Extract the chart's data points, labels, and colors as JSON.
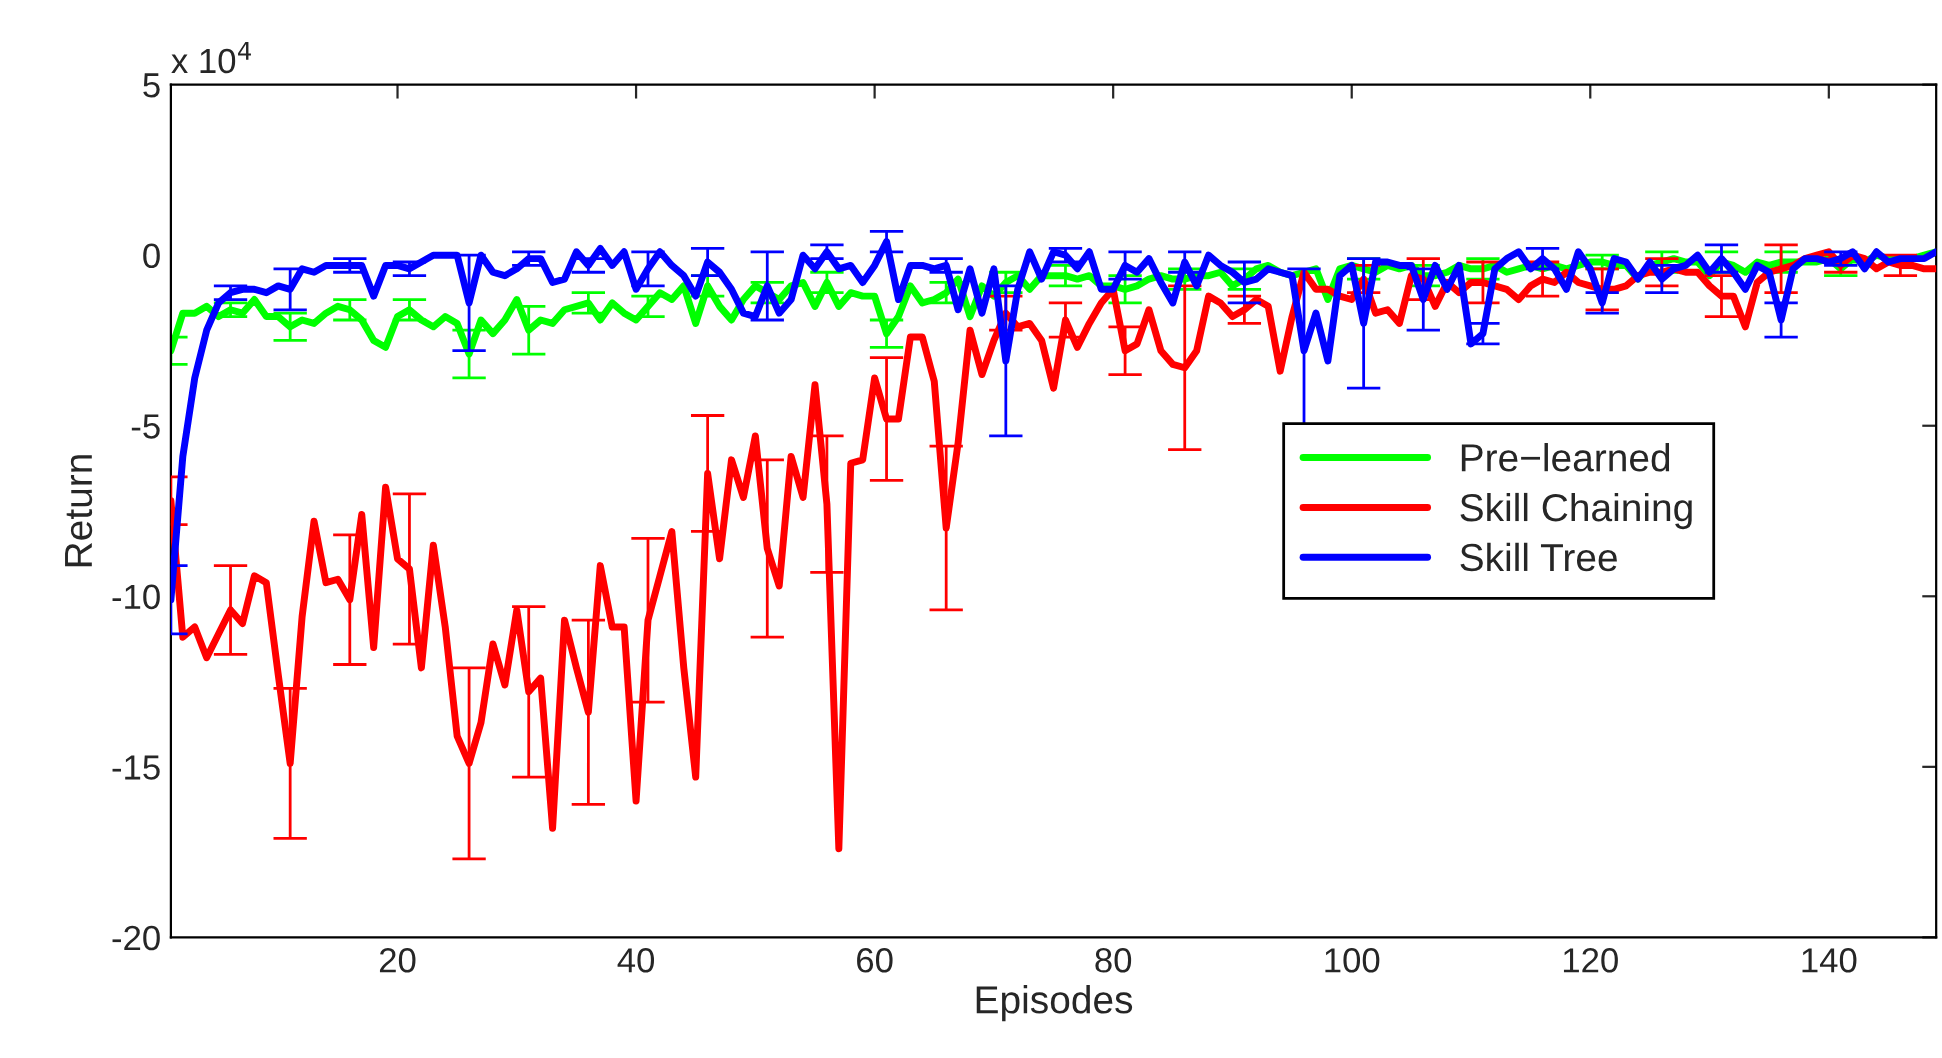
{
  "chart_data": {
    "type": "line",
    "xlabel": "Episodes",
    "ylabel": "Return",
    "annotations": [
      "x 10$^{4}$"
    ],
    "xlim": [
      1,
      149
    ],
    "xticks": [
      20,
      40,
      60,
      80,
      100,
      120,
      140
    ],
    "ylim": [
      -20,
      5
    ],
    "yticks": [
      -20,
      -15,
      -10,
      -5,
      0,
      5
    ],
    "legend": "center right",
    "x": [
      1,
      2,
      3,
      4,
      5,
      6,
      7,
      8,
      9,
      10,
      11,
      12,
      13,
      14,
      15,
      16,
      17,
      18,
      19,
      20,
      21,
      22,
      23,
      24,
      25,
      26,
      27,
      28,
      29,
      30,
      31,
      32,
      33,
      34,
      35,
      36,
      37,
      38,
      39,
      40,
      41,
      42,
      43,
      44,
      45,
      46,
      47,
      48,
      49,
      50,
      51,
      52,
      53,
      54,
      55,
      56,
      57,
      58,
      59,
      60,
      61,
      62,
      63,
      64,
      65,
      66,
      67,
      68,
      69,
      70,
      71,
      72,
      73,
      74,
      75,
      76,
      77,
      78,
      79,
      80,
      81,
      82,
      83,
      84,
      85,
      86,
      87,
      88,
      89,
      90,
      91,
      92,
      93,
      94,
      95,
      96,
      97,
      98,
      99,
      100,
      101,
      102,
      103,
      104,
      105,
      106,
      107,
      108,
      109,
      110,
      111,
      112,
      113,
      114,
      115,
      116,
      117,
      118,
      119,
      120,
      121,
      122,
      123,
      124,
      125,
      126,
      127,
      128,
      129,
      130,
      131,
      132,
      133,
      134,
      135,
      136,
      137,
      138,
      139,
      140,
      141,
      142,
      143,
      144,
      145,
      146,
      147,
      148,
      149
    ],
    "series": [
      {
        "name": "Pre−learned",
        "color": "#00ff00",
        "values": [
          -2.8,
          -1.7,
          -1.7,
          -1.5,
          -1.8,
          -1.6,
          -1.7,
          -1.3,
          -1.8,
          -1.8,
          -2.1,
          -1.9,
          -2.0,
          -1.7,
          -1.5,
          -1.6,
          -1.9,
          -2.5,
          -2.7,
          -1.8,
          -1.6,
          -1.9,
          -2.1,
          -1.8,
          -2.0,
          -2.9,
          -1.9,
          -2.3,
          -1.9,
          -1.3,
          -2.2,
          -1.9,
          -2.0,
          -1.6,
          -1.5,
          -1.4,
          -1.9,
          -1.4,
          -1.7,
          -1.9,
          -1.5,
          -1.1,
          -1.3,
          -0.9,
          -2.0,
          -0.9,
          -1.5,
          -1.9,
          -1.3,
          -0.9,
          -1.1,
          -1.3,
          -0.9,
          -0.8,
          -1.5,
          -0.8,
          -1.5,
          -1.1,
          -1.2,
          -1.2,
          -2.3,
          -1.8,
          -0.9,
          -1.4,
          -1.3,
          -1.1,
          -0.7,
          -1.8,
          -0.9,
          -1.2,
          -0.8,
          -0.6,
          -1.0,
          -0.6,
          -0.6,
          -0.6,
          -0.7,
          -0.6,
          -0.9,
          -0.9,
          -1.0,
          -0.9,
          -0.7,
          -0.6,
          -0.7,
          -0.7,
          -0.6,
          -0.6,
          -0.5,
          -0.9,
          -0.7,
          -0.4,
          -0.3,
          -0.5,
          -0.6,
          -0.5,
          -0.4,
          -1.3,
          -0.4,
          -0.3,
          -0.4,
          -0.5,
          -0.3,
          -0.4,
          -0.3,
          -0.6,
          -0.6,
          -0.5,
          -0.3,
          -0.4,
          -0.4,
          -0.3,
          -0.5,
          -0.4,
          -0.3,
          -0.4,
          -0.3,
          -0.4,
          -0.3,
          -0.2,
          -0.2,
          -0.3,
          -0.3,
          -0.7,
          -0.3,
          -0.2,
          -0.1,
          -0.2,
          -0.2,
          -0.6,
          -0.2,
          -0.3,
          -0.5,
          -0.2,
          -0.3,
          -0.2,
          -0.2,
          -0.2,
          -0.2,
          -0.1,
          -0.4,
          -0.1,
          -0.2,
          0.0,
          -0.1,
          -0.1,
          -0.1,
          0.0,
          0.1
        ],
        "errors": [
          0.4,
          null,
          null,
          null,
          null,
          0.2,
          null,
          null,
          null,
          null,
          0.4,
          null,
          null,
          null,
          null,
          0.3,
          null,
          null,
          null,
          null,
          0.3,
          null,
          null,
          null,
          null,
          0.7,
          null,
          null,
          null,
          null,
          0.7,
          null,
          null,
          null,
          null,
          0.3,
          null,
          null,
          null,
          null,
          0.3,
          null,
          null,
          null,
          null,
          0.3,
          null,
          null,
          null,
          null,
          0.3,
          null,
          null,
          null,
          null,
          0.3,
          null,
          null,
          null,
          null,
          0.4,
          null,
          null,
          null,
          null,
          0.3,
          null,
          null,
          null,
          null,
          0.3,
          null,
          null,
          null,
          null,
          0.3,
          null,
          null,
          null,
          null,
          0.4,
          null,
          null,
          null,
          null,
          0.3,
          null,
          null,
          null,
          null,
          0.3,
          null,
          null,
          null,
          null,
          null,
          null,
          null,
          null,
          null,
          0.3,
          null,
          null,
          null,
          null,
          0.3,
          null,
          null,
          null,
          null,
          0.3,
          null,
          null,
          null,
          null,
          null,
          null,
          null,
          null,
          null,
          0.2,
          null,
          null,
          null,
          null,
          0.3,
          null,
          null,
          null,
          null,
          0.3,
          null,
          null,
          null,
          null,
          0.3,
          null,
          null,
          null,
          null,
          0.2,
          null,
          null,
          null,
          null,
          null,
          null,
          null,
          null
        ]
      },
      {
        "name": "Skill Chaining",
        "color": "#ff0000",
        "values": [
          -7.2,
          -11.2,
          -10.9,
          -11.8,
          -11.1,
          -10.4,
          -10.8,
          -9.4,
          -9.6,
          -12.3,
          -14.9,
          -10.6,
          -7.8,
          -9.6,
          -9.5,
          -10.1,
          -7.6,
          -11.5,
          -6.8,
          -8.9,
          -9.2,
          -12.1,
          -8.5,
          -10.9,
          -14.1,
          -14.9,
          -13.7,
          -11.4,
          -12.6,
          -10.4,
          -12.8,
          -12.4,
          -16.8,
          -10.7,
          -12.1,
          -13.4,
          -9.1,
          -10.9,
          -10.9,
          -16.0,
          -10.7,
          -9.4,
          -8.1,
          -12.1,
          -15.3,
          -6.4,
          -8.9,
          -6.0,
          -7.1,
          -5.3,
          -8.6,
          -9.7,
          -5.9,
          -7.1,
          -3.8,
          -7.3,
          -17.4,
          -6.1,
          -6.0,
          -3.6,
          -4.8,
          -4.8,
          -2.4,
          -2.4,
          -3.7,
          -8.0,
          -5.5,
          -2.2,
          -3.5,
          -2.5,
          -1.7,
          -2.1,
          -2.0,
          -2.5,
          -3.9,
          -1.9,
          -2.7,
          -2.0,
          -1.4,
          -1.0,
          -2.8,
          -2.6,
          -1.6,
          -2.8,
          -3.2,
          -3.3,
          -2.8,
          -1.2,
          -1.4,
          -1.8,
          -1.6,
          -1.3,
          -1.5,
          -3.4,
          -1.8,
          -0.5,
          -1.0,
          -1.0,
          -1.2,
          -1.3,
          -0.7,
          -1.7,
          -1.6,
          -2.0,
          -0.6,
          -0.7,
          -1.5,
          -0.8,
          -1.1,
          -0.8,
          -0.8,
          -0.9,
          -1.0,
          -1.3,
          -0.9,
          -0.7,
          -0.8,
          -0.5,
          -0.8,
          -0.9,
          -1.0,
          -1.0,
          -0.9,
          -0.6,
          -0.5,
          -0.5,
          -0.4,
          -0.5,
          -0.5,
          -0.9,
          -1.2,
          -1.2,
          -2.1,
          -0.8,
          -0.5,
          -0.4,
          -0.3,
          -0.1,
          0.0,
          0.1,
          -0.3,
          0.0,
          -0.1,
          -0.4,
          -0.2,
          -0.3,
          -0.3,
          -0.4,
          -0.4
        ],
        "errors": [
          0.7,
          null,
          null,
          null,
          null,
          1.3,
          null,
          null,
          null,
          null,
          2.2,
          null,
          null,
          null,
          null,
          1.9,
          null,
          null,
          null,
          null,
          2.2,
          null,
          null,
          null,
          null,
          2.8,
          null,
          null,
          null,
          null,
          2.5,
          null,
          null,
          null,
          null,
          2.7,
          null,
          null,
          null,
          null,
          2.4,
          null,
          null,
          null,
          null,
          1.7,
          null,
          null,
          null,
          null,
          2.6,
          null,
          null,
          null,
          null,
          2.0,
          null,
          null,
          null,
          null,
          1.8,
          null,
          null,
          null,
          null,
          2.4,
          null,
          null,
          null,
          null,
          0.5,
          null,
          null,
          null,
          null,
          0.5,
          null,
          null,
          null,
          null,
          0.7,
          null,
          null,
          null,
          null,
          2.4,
          null,
          null,
          null,
          null,
          0.4,
          null,
          null,
          null,
          null,
          null,
          null,
          null,
          null,
          null,
          0.4,
          null,
          null,
          null,
          null,
          0.6,
          null,
          null,
          null,
          null,
          0.6,
          null,
          null,
          null,
          null,
          0.5,
          null,
          null,
          null,
          null,
          0.6,
          null,
          null,
          null,
          null,
          0.4,
          null,
          null,
          null,
          null,
          0.6,
          null,
          null,
          null,
          null,
          0.7,
          null,
          null,
          null,
          null,
          0.2,
          null,
          null,
          null,
          null,
          0.3,
          null,
          null,
          null
        ]
      },
      {
        "name": "Skill Tree",
        "color": "#0000ff",
        "values": [
          -10.1,
          -5.9,
          -3.6,
          -2.2,
          -1.4,
          -1.1,
          -1.0,
          -1.0,
          -1.1,
          -0.9,
          -1.0,
          -0.4,
          -0.5,
          -0.3,
          -0.3,
          -0.3,
          -0.3,
          -1.2,
          -0.3,
          -0.3,
          -0.4,
          -0.2,
          0.0,
          0.0,
          0.0,
          -1.4,
          0.0,
          -0.5,
          -0.6,
          -0.4,
          -0.1,
          -0.1,
          -0.8,
          -0.7,
          0.1,
          -0.3,
          0.2,
          -0.3,
          0.1,
          -1.0,
          -0.4,
          0.1,
          -0.3,
          -0.6,
          -1.2,
          -0.2,
          -0.5,
          -1.0,
          -1.7,
          -1.8,
          -0.9,
          -1.7,
          -1.3,
          0.0,
          -0.4,
          0.1,
          -0.4,
          -0.3,
          -0.8,
          -0.3,
          0.4,
          -1.3,
          -0.3,
          -0.3,
          -0.4,
          -0.3,
          -1.6,
          -0.4,
          -1.7,
          -0.4,
          -3.1,
          -1.0,
          0.1,
          -0.7,
          0.1,
          0.0,
          -0.4,
          0.1,
          -1.0,
          -1.0,
          -0.3,
          -0.5,
          -0.1,
          -0.8,
          -1.4,
          -0.2,
          -0.9,
          0.0,
          -0.3,
          -0.5,
          -0.8,
          -0.7,
          -0.4,
          -0.5,
          -0.6,
          -2.8,
          -1.7,
          -3.1,
          -0.6,
          -0.3,
          -2.0,
          -0.2,
          -0.2,
          -0.3,
          -0.3,
          -1.3,
          -0.3,
          -1.0,
          -0.3,
          -2.6,
          -2.3,
          -0.4,
          -0.1,
          0.1,
          -0.4,
          -0.1,
          -0.4,
          -1.0,
          0.1,
          -0.4,
          -1.4,
          -0.1,
          -0.2,
          -0.7,
          -0.2,
          -0.7,
          -0.4,
          -0.3,
          0.0,
          -0.5,
          -0.1,
          -0.5,
          -1.0,
          -0.3,
          -0.5,
          -1.9,
          -0.4,
          -0.1,
          -0.1,
          -0.2,
          -0.1,
          0.1,
          -0.4,
          0.1,
          -0.2,
          -0.1,
          -0.1,
          -0.1,
          0.1
        ],
        "errors": [
          1.0,
          null,
          null,
          null,
          null,
          0.2,
          null,
          null,
          null,
          null,
          0.6,
          null,
          null,
          null,
          null,
          0.2,
          null,
          null,
          null,
          null,
          0.2,
          null,
          null,
          null,
          null,
          1.4,
          null,
          null,
          null,
          null,
          0.2,
          null,
          null,
          null,
          null,
          0.2,
          null,
          null,
          null,
          null,
          0.5,
          null,
          null,
          null,
          null,
          0.4,
          null,
          null,
          null,
          null,
          1.0,
          null,
          null,
          null,
          null,
          0.2,
          null,
          null,
          null,
          null,
          0.3,
          null,
          null,
          null,
          null,
          0.2,
          null,
          null,
          null,
          null,
          2.2,
          null,
          null,
          null,
          null,
          0.2,
          null,
          null,
          null,
          null,
          0.4,
          null,
          null,
          null,
          null,
          0.3,
          null,
          null,
          null,
          null,
          0.6,
          null,
          null,
          null,
          null,
          2.4,
          null,
          null,
          null,
          null,
          1.9,
          null,
          null,
          null,
          null,
          0.9,
          null,
          null,
          null,
          null,
          0.3,
          null,
          null,
          null,
          null,
          0.3,
          null,
          null,
          null,
          null,
          0.3,
          null,
          null,
          null,
          null,
          0.4,
          null,
          null,
          null,
          null,
          0.4,
          null,
          null,
          null,
          null,
          0.5,
          null,
          null,
          null,
          null,
          0.2,
          null,
          null,
          null,
          null,
          null,
          null,
          null,
          null
        ]
      }
    ]
  }
}
